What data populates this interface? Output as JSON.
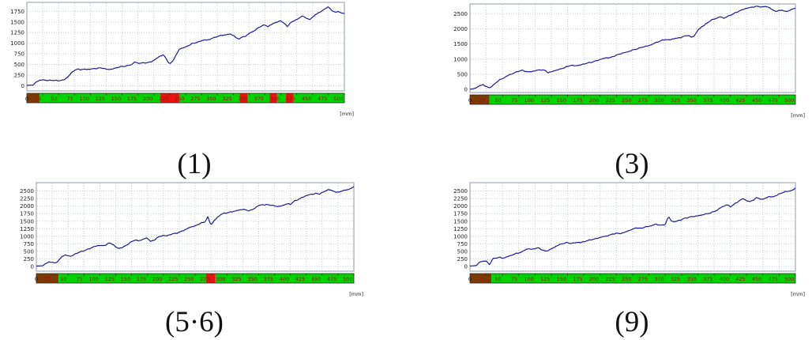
{
  "colors": {
    "line": "#1c1c96",
    "grid": "#c6cdd6",
    "panel_border": "#8f9aa6",
    "axis_text": "#1a1a1a",
    "bar_text": "#8b1a00",
    "bar_border": "#2a2a2a",
    "green": "#00d400",
    "red": "#ee1111",
    "brown": "#7d3a05"
  },
  "chart_data": [
    {
      "type": "line",
      "caption": "(1)",
      "title": "",
      "xlabel": "[mm]",
      "ylabel": "",
      "xlim": [
        0,
        500
      ],
      "xtick_step": 25,
      "ylim": [
        -120,
        1960
      ],
      "yticks": [
        0,
        250,
        500,
        750,
        1000,
        1250,
        1500,
        1750
      ],
      "grid": true,
      "legend": "none",
      "bar_segments": [
        {
          "from": 0,
          "to": 20,
          "color": "brown"
        },
        {
          "from": 20,
          "to": 210,
          "color": "green"
        },
        {
          "from": 210,
          "to": 240,
          "color": "red"
        },
        {
          "from": 240,
          "to": 335,
          "color": "green"
        },
        {
          "from": 335,
          "to": 348,
          "color": "red"
        },
        {
          "from": 348,
          "to": 382,
          "color": "green"
        },
        {
          "from": 382,
          "to": 394,
          "color": "red"
        },
        {
          "from": 394,
          "to": 408,
          "color": "green"
        },
        {
          "from": 408,
          "to": 420,
          "color": "red"
        },
        {
          "from": 420,
          "to": 500,
          "color": "green"
        }
      ],
      "series": {
        "x_start": 0,
        "x_step": 5,
        "y": [
          10,
          15,
          20,
          95,
          130,
          140,
          130,
          125,
          130,
          125,
          120,
          130,
          150,
          220,
          300,
          370,
          390,
          380,
          390,
          385,
          395,
          400,
          410,
          420,
          415,
          390,
          385,
          395,
          420,
          440,
          455,
          460,
          480,
          500,
          560,
          530,
          535,
          540,
          545,
          560,
          600,
          650,
          700,
          730,
          620,
          505,
          590,
          720,
          860,
          890,
          910,
          950,
          990,
          1010,
          1030,
          1060,
          1080,
          1070,
          1110,
          1130,
          1160,
          1180,
          1190,
          1205,
          1215,
          1190,
          1120,
          1105,
          1150,
          1170,
          1230,
          1270,
          1310,
          1370,
          1410,
          1430,
          1390,
          1440,
          1480,
          1500,
          1530,
          1470,
          1395,
          1480,
          1520,
          1560,
          1600,
          1650,
          1580,
          1560,
          1610,
          1680,
          1720,
          1760,
          1820,
          1850,
          1780,
          1720,
          1750,
          1710,
          1700
        ]
      }
    },
    {
      "type": "line",
      "caption": "(3)",
      "title": "",
      "xlabel": "[mm]",
      "ylabel": "",
      "xlim": [
        0,
        500
      ],
      "xtick_step": 25,
      "ylim": [
        -100,
        2820
      ],
      "yticks": [
        0,
        500,
        1000,
        1500,
        2000,
        2500
      ],
      "grid": true,
      "legend": "none",
      "bar_segments": [
        {
          "from": 0,
          "to": 30,
          "color": "brown"
        },
        {
          "from": 30,
          "to": 500,
          "color": "green"
        }
      ],
      "series": {
        "x_start": 0,
        "x_step": 5,
        "y": [
          10,
          20,
          60,
          130,
          160,
          90,
          60,
          120,
          230,
          310,
          360,
          420,
          480,
          520,
          560,
          610,
          630,
          600,
          580,
          590,
          620,
          640,
          650,
          630,
          560,
          580,
          620,
          650,
          680,
          720,
          760,
          800,
          780,
          790,
          810,
          840,
          870,
          890,
          920,
          950,
          990,
          1020,
          1050,
          1040,
          1090,
          1130,
          1170,
          1200,
          1230,
          1260,
          1300,
          1330,
          1360,
          1400,
          1420,
          1450,
          1490,
          1540,
          1580,
          1620,
          1650,
          1630,
          1660,
          1680,
          1700,
          1720,
          1760,
          1790,
          1720,
          1780,
          1950,
          2050,
          2120,
          2200,
          2280,
          2320,
          2360,
          2400,
          2350,
          2400,
          2450,
          2500,
          2550,
          2600,
          2640,
          2680,
          2700,
          2720,
          2740,
          2730,
          2720,
          2740,
          2700,
          2620,
          2580,
          2600,
          2620,
          2560,
          2600,
          2650,
          2680
        ]
      }
    },
    {
      "type": "line",
      "caption": "(5·6)",
      "title": "",
      "xlabel": "[mm]",
      "ylabel": "",
      "xlim": [
        0,
        500
      ],
      "xtick_step": 25,
      "ylim": [
        -160,
        2780
      ],
      "yticks": [
        0,
        250,
        500,
        750,
        1000,
        1250,
        1500,
        1750,
        2000,
        2250,
        2500
      ],
      "grid": true,
      "legend": "none",
      "bar_segments": [
        {
          "from": 0,
          "to": 35,
          "color": "brown"
        },
        {
          "from": 35,
          "to": 267,
          "color": "green"
        },
        {
          "from": 267,
          "to": 282,
          "color": "red"
        },
        {
          "from": 282,
          "to": 500,
          "color": "green"
        }
      ],
      "series": {
        "x_start": 0,
        "x_step": 5,
        "y": [
          10,
          15,
          20,
          100,
          150,
          130,
          120,
          180,
          330,
          370,
          360,
          330,
          400,
          450,
          490,
          520,
          560,
          600,
          650,
          680,
          700,
          680,
          720,
          780,
          740,
          640,
          600,
          620,
          680,
          750,
          820,
          880,
          850,
          870,
          920,
          940,
          830,
          860,
          950,
          1000,
          1030,
          1010,
          1050,
          1080,
          1100,
          1130,
          1180,
          1220,
          1280,
          1320,
          1340,
          1400,
          1440,
          1470,
          1640,
          1370,
          1520,
          1620,
          1720,
          1760,
          1780,
          1800,
          1820,
          1850,
          1870,
          1900,
          1870,
          1850,
          1880,
          1950,
          2020,
          2050,
          2040,
          2050,
          2030,
          2010,
          1990,
          2000,
          2040,
          2080,
          2060,
          2150,
          2200,
          2250,
          2300,
          2350,
          2380,
          2400,
          2420,
          2400,
          2450,
          2500,
          2550,
          2520,
          2480,
          2450,
          2500,
          2520,
          2550,
          2580,
          2650
        ]
      }
    },
    {
      "type": "line",
      "caption": "(9)",
      "title": "",
      "xlabel": "[mm]",
      "ylabel": "",
      "xlim": [
        0,
        500
      ],
      "xtick_step": 25,
      "ylim": [
        -160,
        2780
      ],
      "yticks": [
        0,
        250,
        500,
        750,
        1000,
        1250,
        1500,
        1750,
        2000,
        2250,
        2500
      ],
      "grid": true,
      "legend": "none",
      "bar_segments": [
        {
          "from": 0,
          "to": 33,
          "color": "brown"
        },
        {
          "from": 33,
          "to": 500,
          "color": "green"
        }
      ],
      "series": {
        "x_start": 0,
        "x_step": 5,
        "y": [
          10,
          20,
          30,
          150,
          170,
          180,
          60,
          250,
          280,
          300,
          270,
          300,
          340,
          380,
          420,
          450,
          480,
          560,
          580,
          570,
          590,
          620,
          560,
          500,
          530,
          580,
          640,
          700,
          740,
          770,
          790,
          760,
          780,
          800,
          790,
          820,
          850,
          880,
          900,
          930,
          960,
          990,
          1010,
          1040,
          1080,
          1100,
          1090,
          1110,
          1150,
          1200,
          1230,
          1290,
          1260,
          1280,
          1310,
          1330,
          1360,
          1400,
          1380,
          1360,
          1400,
          1650,
          1500,
          1480,
          1520,
          1550,
          1600,
          1620,
          1650,
          1660,
          1680,
          1700,
          1730,
          1750,
          1780,
          1820,
          1870,
          1950,
          2000,
          2050,
          1980,
          2050,
          2120,
          2200,
          2250,
          2180,
          2150,
          2200,
          2280,
          2250,
          2220,
          2280,
          2320,
          2300,
          2350,
          2400,
          2450,
          2480,
          2500,
          2520,
          2600
        ]
      }
    }
  ]
}
